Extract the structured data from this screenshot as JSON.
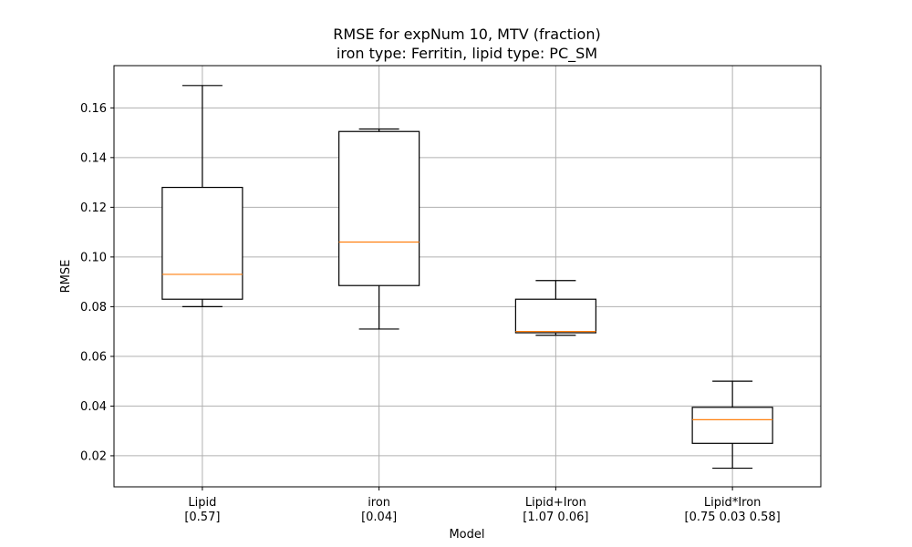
{
  "chart_data": {
    "type": "box",
    "title": "RMSE for expNum 10, MTV (fraction)",
    "subtitle": "iron type: Ferritin, lipid type: PC_SM",
    "xlabel": "Model",
    "ylabel": "RMSE",
    "ylim": [
      0.0075,
      0.177
    ],
    "yticks": [
      "0.02",
      "0.04",
      "0.06",
      "0.08",
      "0.10",
      "0.12",
      "0.14",
      "0.16"
    ],
    "grid": true,
    "categories": [
      {
        "name": "Lipid",
        "sub": "[0.57]"
      },
      {
        "name": "iron",
        "sub": "[0.04]"
      },
      {
        "name": "Lipid+Iron",
        "sub": "[1.07 0.06]"
      },
      {
        "name": "Lipid*Iron",
        "sub": "[0.75 0.03 0.58]"
      }
    ],
    "boxes": [
      {
        "whisker_low": 0.08,
        "q1": 0.083,
        "median": 0.093,
        "q3": 0.128,
        "whisker_high": 0.169
      },
      {
        "whisker_low": 0.071,
        "q1": 0.0885,
        "median": 0.106,
        "q3": 0.1505,
        "whisker_high": 0.1515
      },
      {
        "whisker_low": 0.0685,
        "q1": 0.0695,
        "median": 0.07,
        "q3": 0.083,
        "whisker_high": 0.0905
      },
      {
        "whisker_low": 0.015,
        "q1": 0.025,
        "median": 0.0345,
        "q3": 0.0395,
        "whisker_high": 0.05
      }
    ],
    "colors": {
      "box": "#000000",
      "median": "#ff7f0e",
      "grid": "#b0b0b0"
    }
  }
}
